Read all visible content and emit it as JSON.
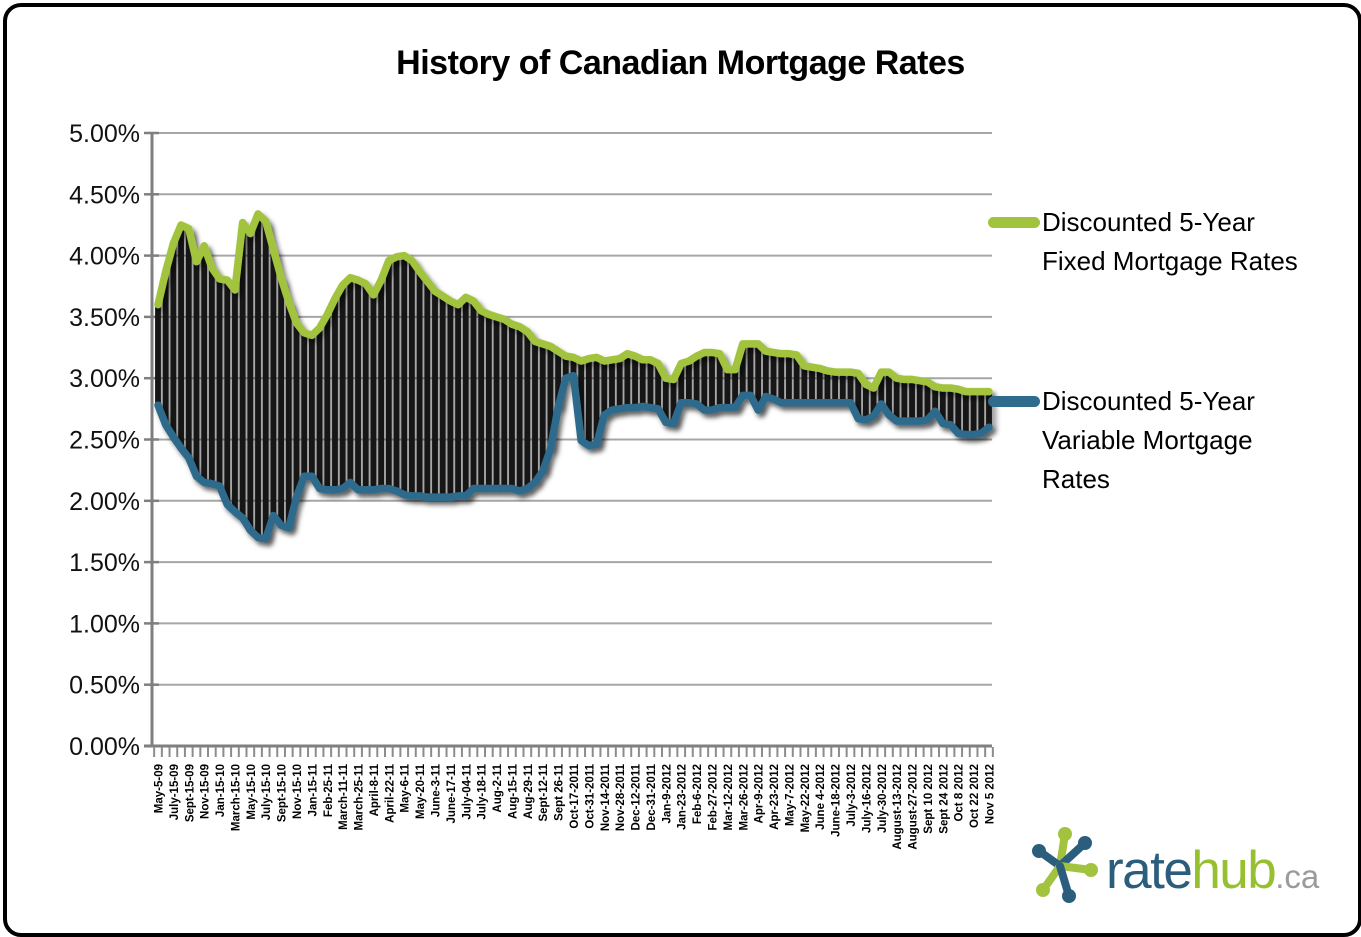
{
  "title": "History of Canadian Mortgage Rates",
  "legend": [
    {
      "lines": [
        "Discounted 5-Year",
        "Fixed Mortgage Rates"
      ],
      "color": "#a2c33d",
      "series": "fixed"
    },
    {
      "lines": [
        "Discounted 5-Year",
        "Variable Mortgage",
        "Rates"
      ],
      "color": "#2f6b8c",
      "series": "variable"
    }
  ],
  "logo": {
    "text_rate": "rate",
    "text_hub": "hub",
    "text_tld": ".ca",
    "rate_color": "#2b5d7d",
    "hub_color": "#96c02f",
    "tld_color": "#9b9b9b",
    "star_blue": "#2b5d7d",
    "star_green": "#a2c33d"
  },
  "chart_data": {
    "type": "line",
    "title": "History of Canadian Mortgage Rates",
    "xlabel": "",
    "ylabel": "",
    "ylim": [
      0,
      5
    ],
    "ytick_step": 0.5,
    "ytick_labels": [
      "5.00%",
      "4.50%",
      "4.00%",
      "3.50%",
      "3.00%",
      "2.50%",
      "2.00%",
      "1.50%",
      "1.00%",
      "0.50%",
      "0.00%"
    ],
    "grid": true,
    "legend_position": "right",
    "fill_between_color": "#151515",
    "fill_style": "black vertical bars spanning between the two lines",
    "x_label_interval": 2,
    "x_labels": [
      "May-5-09",
      "July-15-09",
      "Sept-15-09",
      "Nov-15-09",
      "Jan-15-10",
      "March-15-10",
      "May-15-10",
      "July-15-10",
      "Sept-15-10",
      "Nov-15-10",
      "Jan-15-11",
      "Feb-25-11",
      "March-11-11",
      "March-25-11",
      "April-8-11",
      "April-22-11",
      "May-6-11",
      "May-20-11",
      "June-3-11",
      "June-17-11",
      "July-04-11",
      "July-18-11",
      "Aug-2-11",
      "Aug-15-11",
      "Aug-29-11",
      "Sept-12-11",
      "Sept 26-11",
      "Oct-17-2011",
      "Oct-31-2011",
      "Nov-14-2011",
      "Nov-28-2011",
      "Dec-12-2011",
      "Dec-31-2011",
      "Jan-9-2012",
      "Jan-23-2012",
      "Feb-6-2012",
      "Feb-27-2012",
      "Mar-12-2012",
      "Mar-26-2012",
      "Apr-9-2012",
      "Apr-23-2012",
      "May-7-2012",
      "May-22-2012",
      "June 4-2012",
      "June-18-2012",
      "July-3-2012",
      "July-16-2012",
      "July-30-2012",
      "August-13-2012",
      "August-27-2012",
      "Sept 10 2012",
      "Sept 24 2012",
      "Oct 8 2012",
      "Oct 22 2012",
      "Nov 5 2012"
    ],
    "series": [
      {
        "name": "Discounted 5-Year Fixed Mortgage Rates",
        "color": "#a2c33d",
        "values": [
          3.6,
          3.87,
          4.1,
          4.25,
          4.22,
          3.95,
          4.08,
          3.9,
          3.81,
          3.8,
          3.72,
          4.27,
          4.18,
          4.34,
          4.28,
          4.05,
          3.82,
          3.62,
          3.45,
          3.37,
          3.35,
          3.41,
          3.52,
          3.65,
          3.76,
          3.82,
          3.8,
          3.77,
          3.68,
          3.8,
          3.96,
          3.99,
          4.0,
          3.96,
          3.87,
          3.79,
          3.71,
          3.67,
          3.63,
          3.6,
          3.66,
          3.63,
          3.55,
          3.52,
          3.5,
          3.48,
          3.44,
          3.42,
          3.38,
          3.3,
          3.28,
          3.26,
          3.22,
          3.18,
          3.17,
          3.14,
          3.16,
          3.17,
          3.14,
          3.15,
          3.16,
          3.2,
          3.18,
          3.15,
          3.15,
          3.12,
          3.0,
          2.99,
          3.12,
          3.14,
          3.18,
          3.21,
          3.21,
          3.2,
          3.07,
          3.07,
          3.28,
          3.28,
          3.28,
          3.22,
          3.21,
          3.2,
          3.2,
          3.19,
          3.1,
          3.09,
          3.08,
          3.06,
          3.05,
          3.05,
          3.05,
          3.04,
          2.95,
          2.92,
          3.05,
          3.05,
          3.0,
          2.99,
          2.99,
          2.98,
          2.97,
          2.93,
          2.92,
          2.92,
          2.91,
          2.89,
          2.89,
          2.89,
          2.89
        ]
      },
      {
        "name": "Discounted 5-Year Variable Mortgage Rates",
        "color": "#2f6b8c",
        "values": [
          2.78,
          2.62,
          2.52,
          2.43,
          2.35,
          2.2,
          2.15,
          2.14,
          2.12,
          1.97,
          1.91,
          1.86,
          1.76,
          1.7,
          1.69,
          1.88,
          1.8,
          1.78,
          2.03,
          2.2,
          2.2,
          2.1,
          2.09,
          2.09,
          2.1,
          2.15,
          2.09,
          2.09,
          2.09,
          2.1,
          2.1,
          2.08,
          2.05,
          2.04,
          2.04,
          2.03,
          2.03,
          2.03,
          2.03,
          2.04,
          2.04,
          2.1,
          2.1,
          2.1,
          2.1,
          2.1,
          2.1,
          2.08,
          2.1,
          2.15,
          2.24,
          2.42,
          2.76,
          3.0,
          3.02,
          2.49,
          2.45,
          2.46,
          2.7,
          2.74,
          2.75,
          2.76,
          2.76,
          2.77,
          2.76,
          2.75,
          2.64,
          2.63,
          2.8,
          2.8,
          2.79,
          2.74,
          2.74,
          2.76,
          2.76,
          2.76,
          2.86,
          2.86,
          2.74,
          2.85,
          2.83,
          2.8,
          2.8,
          2.8,
          2.8,
          2.8,
          2.8,
          2.8,
          2.8,
          2.8,
          2.8,
          2.67,
          2.66,
          2.69,
          2.79,
          2.7,
          2.65,
          2.65,
          2.65,
          2.65,
          2.66,
          2.73,
          2.63,
          2.62,
          2.55,
          2.54,
          2.54,
          2.55,
          2.6
        ]
      }
    ]
  }
}
